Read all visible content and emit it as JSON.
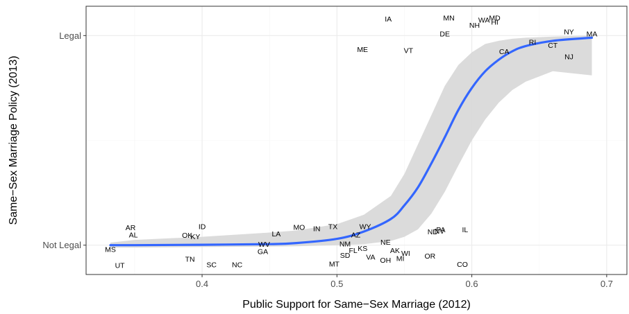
{
  "chart_data": {
    "type": "scatter",
    "title": "",
    "xlabel": "Public Support for Same−Sex Marriage (2012)",
    "ylabel": "Same−Sex Marriage Policy (2013)",
    "xlim": [
      0.314,
      0.715
    ],
    "ylim": [
      -0.14,
      1.14
    ],
    "x_ticks": [
      {
        "value": 0.4,
        "label": "0.4"
      },
      {
        "value": 0.5,
        "label": "0.5"
      },
      {
        "value": 0.6,
        "label": "0.6"
      },
      {
        "value": 0.7,
        "label": "0.7"
      }
    ],
    "y_ticks": [
      {
        "value": 0,
        "label": "Not Legal"
      },
      {
        "value": 1,
        "label": "Legal"
      }
    ],
    "grid": true,
    "legend": "none",
    "points": [
      {
        "label": "MS",
        "x": 0.332,
        "y": -0.02
      },
      {
        "label": "UT",
        "x": 0.339,
        "y": -0.095
      },
      {
        "label": "AR",
        "x": 0.347,
        "y": 0.085
      },
      {
        "label": "AL",
        "x": 0.349,
        "y": 0.05
      },
      {
        "label": "OK",
        "x": 0.389,
        "y": 0.048
      },
      {
        "label": "KY",
        "x": 0.395,
        "y": 0.042
      },
      {
        "label": "TN",
        "x": 0.391,
        "y": -0.065
      },
      {
        "label": "ID",
        "x": 0.4,
        "y": 0.09
      },
      {
        "label": "SC",
        "x": 0.407,
        "y": -0.092
      },
      {
        "label": "NC",
        "x": 0.426,
        "y": -0.092
      },
      {
        "label": "LA",
        "x": 0.455,
        "y": 0.055
      },
      {
        "label": "WV",
        "x": 0.446,
        "y": 0.005
      },
      {
        "label": "GA",
        "x": 0.445,
        "y": -0.03
      },
      {
        "label": "MO",
        "x": 0.472,
        "y": 0.087
      },
      {
        "label": "IN",
        "x": 0.485,
        "y": 0.08
      },
      {
        "label": "TX",
        "x": 0.497,
        "y": 0.09
      },
      {
        "label": "MT",
        "x": 0.498,
        "y": -0.088
      },
      {
        "label": "NM",
        "x": 0.506,
        "y": 0.008
      },
      {
        "label": "SD",
        "x": 0.506,
        "y": -0.048
      },
      {
        "label": "FL",
        "x": 0.512,
        "y": -0.025
      },
      {
        "label": "KS",
        "x": 0.519,
        "y": -0.015
      },
      {
        "label": "WY",
        "x": 0.521,
        "y": 0.09
      },
      {
        "label": "AZ",
        "x": 0.514,
        "y": 0.05
      },
      {
        "label": "VA",
        "x": 0.525,
        "y": -0.055
      },
      {
        "label": "ME",
        "x": 0.519,
        "y": 0.935
      },
      {
        "label": "IA",
        "x": 0.538,
        "y": 1.08
      },
      {
        "label": "OH",
        "x": 0.536,
        "y": -0.07
      },
      {
        "label": "NE",
        "x": 0.536,
        "y": 0.015
      },
      {
        "label": "VT",
        "x": 0.553,
        "y": 0.93
      },
      {
        "label": "AK",
        "x": 0.543,
        "y": -0.025
      },
      {
        "label": "MI",
        "x": 0.547,
        "y": -0.062
      },
      {
        "label": "WI",
        "x": 0.551,
        "y": -0.038
      },
      {
        "label": "OR",
        "x": 0.569,
        "y": -0.05
      },
      {
        "label": "ND",
        "x": 0.571,
        "y": 0.065
      },
      {
        "label": "NV",
        "x": 0.576,
        "y": 0.068
      },
      {
        "label": "PA",
        "x": 0.577,
        "y": 0.075
      },
      {
        "label": "DE",
        "x": 0.58,
        "y": 1.01
      },
      {
        "label": "MN",
        "x": 0.583,
        "y": 1.085
      },
      {
        "label": "IL",
        "x": 0.595,
        "y": 0.075
      },
      {
        "label": "CO",
        "x": 0.593,
        "y": -0.09
      },
      {
        "label": "NH",
        "x": 0.602,
        "y": 1.05
      },
      {
        "label": "WA",
        "x": 0.609,
        "y": 1.075
      },
      {
        "label": "HI",
        "x": 0.617,
        "y": 1.065
      },
      {
        "label": "MD",
        "x": 0.617,
        "y": 1.085
      },
      {
        "label": "CA",
        "x": 0.624,
        "y": 0.925
      },
      {
        "label": "RI",
        "x": 0.645,
        "y": 0.97
      },
      {
        "label": "CT",
        "x": 0.66,
        "y": 0.955
      },
      {
        "label": "NY",
        "x": 0.672,
        "y": 1.02
      },
      {
        "label": "NJ",
        "x": 0.672,
        "y": 0.9
      },
      {
        "label": "MA",
        "x": 0.689,
        "y": 1.01
      }
    ],
    "fit_line": {
      "x": [
        0.332,
        0.35,
        0.4,
        0.45,
        0.47,
        0.5,
        0.52,
        0.54,
        0.55,
        0.56,
        0.57,
        0.58,
        0.59,
        0.6,
        0.61,
        0.62,
        0.63,
        0.64,
        0.66,
        0.689
      ],
      "y": [
        0.0,
        0.0,
        0.002,
        0.005,
        0.01,
        0.03,
        0.065,
        0.125,
        0.19,
        0.275,
        0.39,
        0.515,
        0.645,
        0.75,
        0.83,
        0.885,
        0.925,
        0.95,
        0.975,
        0.99
      ],
      "lo": [
        -0.012,
        -0.012,
        -0.009,
        -0.007,
        -0.005,
        0.0,
        0.005,
        0.02,
        0.04,
        0.075,
        0.15,
        0.255,
        0.38,
        0.5,
        0.6,
        0.68,
        0.74,
        0.78,
        0.83,
        0.81
      ],
      "hi": [
        0.012,
        0.025,
        0.04,
        0.06,
        0.07,
        0.1,
        0.145,
        0.235,
        0.34,
        0.48,
        0.62,
        0.76,
        0.86,
        0.92,
        0.96,
        0.975,
        0.985,
        0.99,
        0.995,
        1.0
      ]
    },
    "colors": {
      "panel_background": "#ffffff",
      "panel_border": "#333333",
      "grid_major": "#ebebeb",
      "grid_minor": "#f5f5f5",
      "fit_line": "#3366ff",
      "confidence_band": "#d9d9d9",
      "point_label": "#000000",
      "tick_label": "#4d4d4d"
    }
  }
}
